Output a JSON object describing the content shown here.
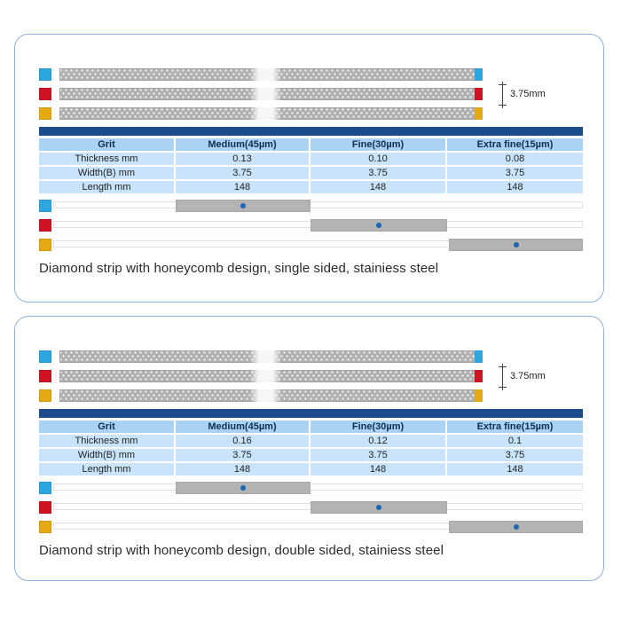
{
  "colors": {
    "cyan": "#2ca6dc",
    "red": "#cf1322",
    "yellow": "#e3a812",
    "navy_divider": "#1c4b8e",
    "table_header_bg": "#a9d2f4",
    "table_row_bg": "#c9e4fa",
    "header_text": "#0d2f52",
    "indicator_dot": "#1b67b3",
    "indicator_bar_gray": "#b3b3b3",
    "strip_gray": "#b0b0b0",
    "panel_border": "#8fb2d8"
  },
  "grits": [
    {
      "name": "Medium(45µm)",
      "color": "#2ca6dc"
    },
    {
      "name": "Fine(30µm)",
      "color": "#cf1322"
    },
    {
      "name": "Extra fine(15µm)",
      "color": "#e3a812"
    }
  ],
  "panels": [
    {
      "dimension_label": "3.75mm",
      "table": {
        "header": [
          "Grit",
          "Medium(45µm)",
          "Fine(30µm)",
          "Extra fine(15µm)"
        ],
        "rows": [
          {
            "label": "Thickness mm",
            "values": [
              "0.13",
              "0.10",
              "0.08"
            ]
          },
          {
            "label": "Width(B) mm",
            "values": [
              "3.75",
              "3.75",
              "3.75"
            ]
          },
          {
            "label": "Length mm",
            "values": [
              "148",
              "148",
              "148"
            ]
          }
        ]
      },
      "caption": "Diamond strip with honeycomb design, single sided, stainiess steel"
    },
    {
      "dimension_label": "3.75mm",
      "table": {
        "header": [
          "Grit",
          "Medium(45µm)",
          "Fine(30µm)",
          "Extra fine(15µm)"
        ],
        "rows": [
          {
            "label": "Thickness mm",
            "values": [
              "0.16",
              "0.12",
              "0.1"
            ]
          },
          {
            "label": "Width(B) mm",
            "values": [
              "3.75",
              "3.75",
              "3.75"
            ]
          },
          {
            "label": "Length mm",
            "values": [
              "148",
              "148",
              "148"
            ]
          }
        ]
      },
      "caption": "Diamond strip with honeycomb design, double sided, stainiess steel"
    }
  ]
}
